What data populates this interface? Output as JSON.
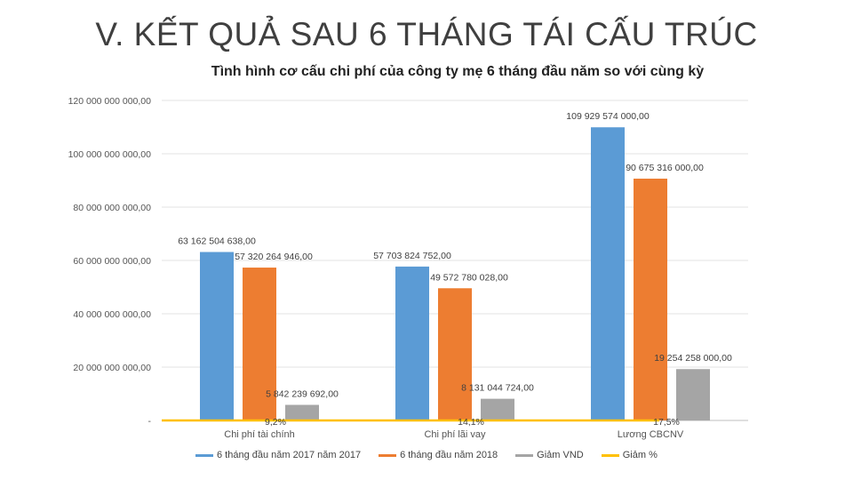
{
  "slide": {
    "title": "V. KẾT QUẢ SAU 6 THÁNG TÁI CẤU TRÚC"
  },
  "chart_data": {
    "type": "bar",
    "title": "Tình hình cơ cấu chi phí của công ty mẹ 6 tháng đầu năm so với cùng kỳ",
    "categories": [
      "Chi phí tài chính",
      "Chi phí lãi vay",
      "Lương CBCNV"
    ],
    "series": [
      {
        "name": "6 tháng đầu năm 2017 năm 2017",
        "color": "#5b9bd5",
        "values": [
          63162504638,
          57703824752,
          109929574000
        ],
        "labels": [
          "63 162 504 638,00",
          "57 703 824 752,00",
          "109 929 574 000,00"
        ]
      },
      {
        "name": "6 tháng đầu năm 2018",
        "color": "#ed7d31",
        "values": [
          57320264946,
          49572780028,
          90675316000
        ],
        "labels": [
          "57 320 264 946,00",
          "49 572 780 028,00",
          "90 675 316 000,00"
        ]
      },
      {
        "name": "Giảm VND",
        "color": "#a5a5a5",
        "values": [
          5842239692,
          8131044724,
          19254258000
        ],
        "labels": [
          "5 842 239 692,00",
          "8 131 044 724,00",
          "19 254 258 000,00"
        ]
      },
      {
        "name": "Giảm %",
        "color": "#ffc000",
        "type": "line",
        "values": [
          9.2,
          14.1,
          17.5
        ],
        "labels": [
          "9,2%",
          "14,1%",
          "17,5%"
        ]
      }
    ],
    "ylim": [
      0,
      120000000000
    ],
    "yticks": [
      {
        "value": 120000000000,
        "label": "120 000 000 000,00"
      },
      {
        "value": 100000000000,
        "label": "100 000 000 000,00"
      },
      {
        "value": 80000000000,
        "label": "80 000 000 000,00"
      },
      {
        "value": 60000000000,
        "label": "60 000 000 000,00"
      },
      {
        "value": 40000000000,
        "label": "40 000 000 000,00"
      },
      {
        "value": 20000000000,
        "label": "20 000 000 000,00"
      },
      {
        "value": 0,
        "label": "-"
      }
    ],
    "grid": true,
    "legend": "bottom"
  }
}
